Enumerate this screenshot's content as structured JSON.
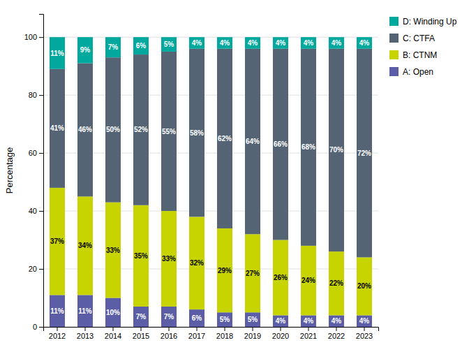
{
  "chart_data": {
    "type": "bar",
    "stacked": true,
    "y_label": "Percentage",
    "categories": [
      "2012",
      "2013",
      "2014",
      "2015",
      "2016",
      "2017",
      "2018",
      "2019",
      "2020",
      "2021",
      "2022",
      "2023"
    ],
    "series": [
      {
        "name": "A: Open",
        "color": "#5b5ea6",
        "values": [
          11,
          11,
          10,
          7,
          7,
          6,
          5,
          5,
          4,
          4,
          4,
          4
        ],
        "value_labels": [
          "11%",
          "11%",
          "10%",
          "7%",
          "7%",
          "6%",
          "5%",
          "5%",
          "4%",
          "4%",
          "4%",
          "4%"
        ]
      },
      {
        "name": "B: CTNM",
        "color": "#c8d400",
        "values": [
          37,
          34,
          33,
          35,
          33,
          32,
          29,
          27,
          26,
          24,
          22,
          20
        ],
        "value_labels": [
          "37%",
          "34%",
          "33%",
          "35%",
          "33%",
          "32%",
          "29%",
          "27%",
          "26%",
          "24%",
          "22%",
          "20%"
        ]
      },
      {
        "name": "C: CTFA",
        "color": "#546475",
        "values": [
          41,
          46,
          50,
          52,
          55,
          58,
          62,
          64,
          66,
          68,
          70,
          72
        ],
        "value_labels": [
          "41%",
          "46%",
          "50%",
          "52%",
          "55%",
          "58%",
          "62%",
          "64%",
          "66%",
          "68%",
          "70%",
          "72%"
        ]
      },
      {
        "name": "D: Winding Up",
        "color": "#00a89d",
        "values": [
          11,
          9,
          7,
          6,
          5,
          4,
          4,
          4,
          4,
          4,
          4,
          4
        ],
        "value_labels": [
          "11%",
          "9%",
          "7%",
          "6%",
          "5%",
          "4%",
          "4%",
          "4%",
          "4%",
          "4%",
          "4%",
          "4%"
        ]
      }
    ],
    "ylim": [
      0,
      108
    ],
    "yticks": [
      0,
      20,
      40,
      60,
      80,
      100
    ],
    "grid": true,
    "legend": "right",
    "data_labels": true
  }
}
